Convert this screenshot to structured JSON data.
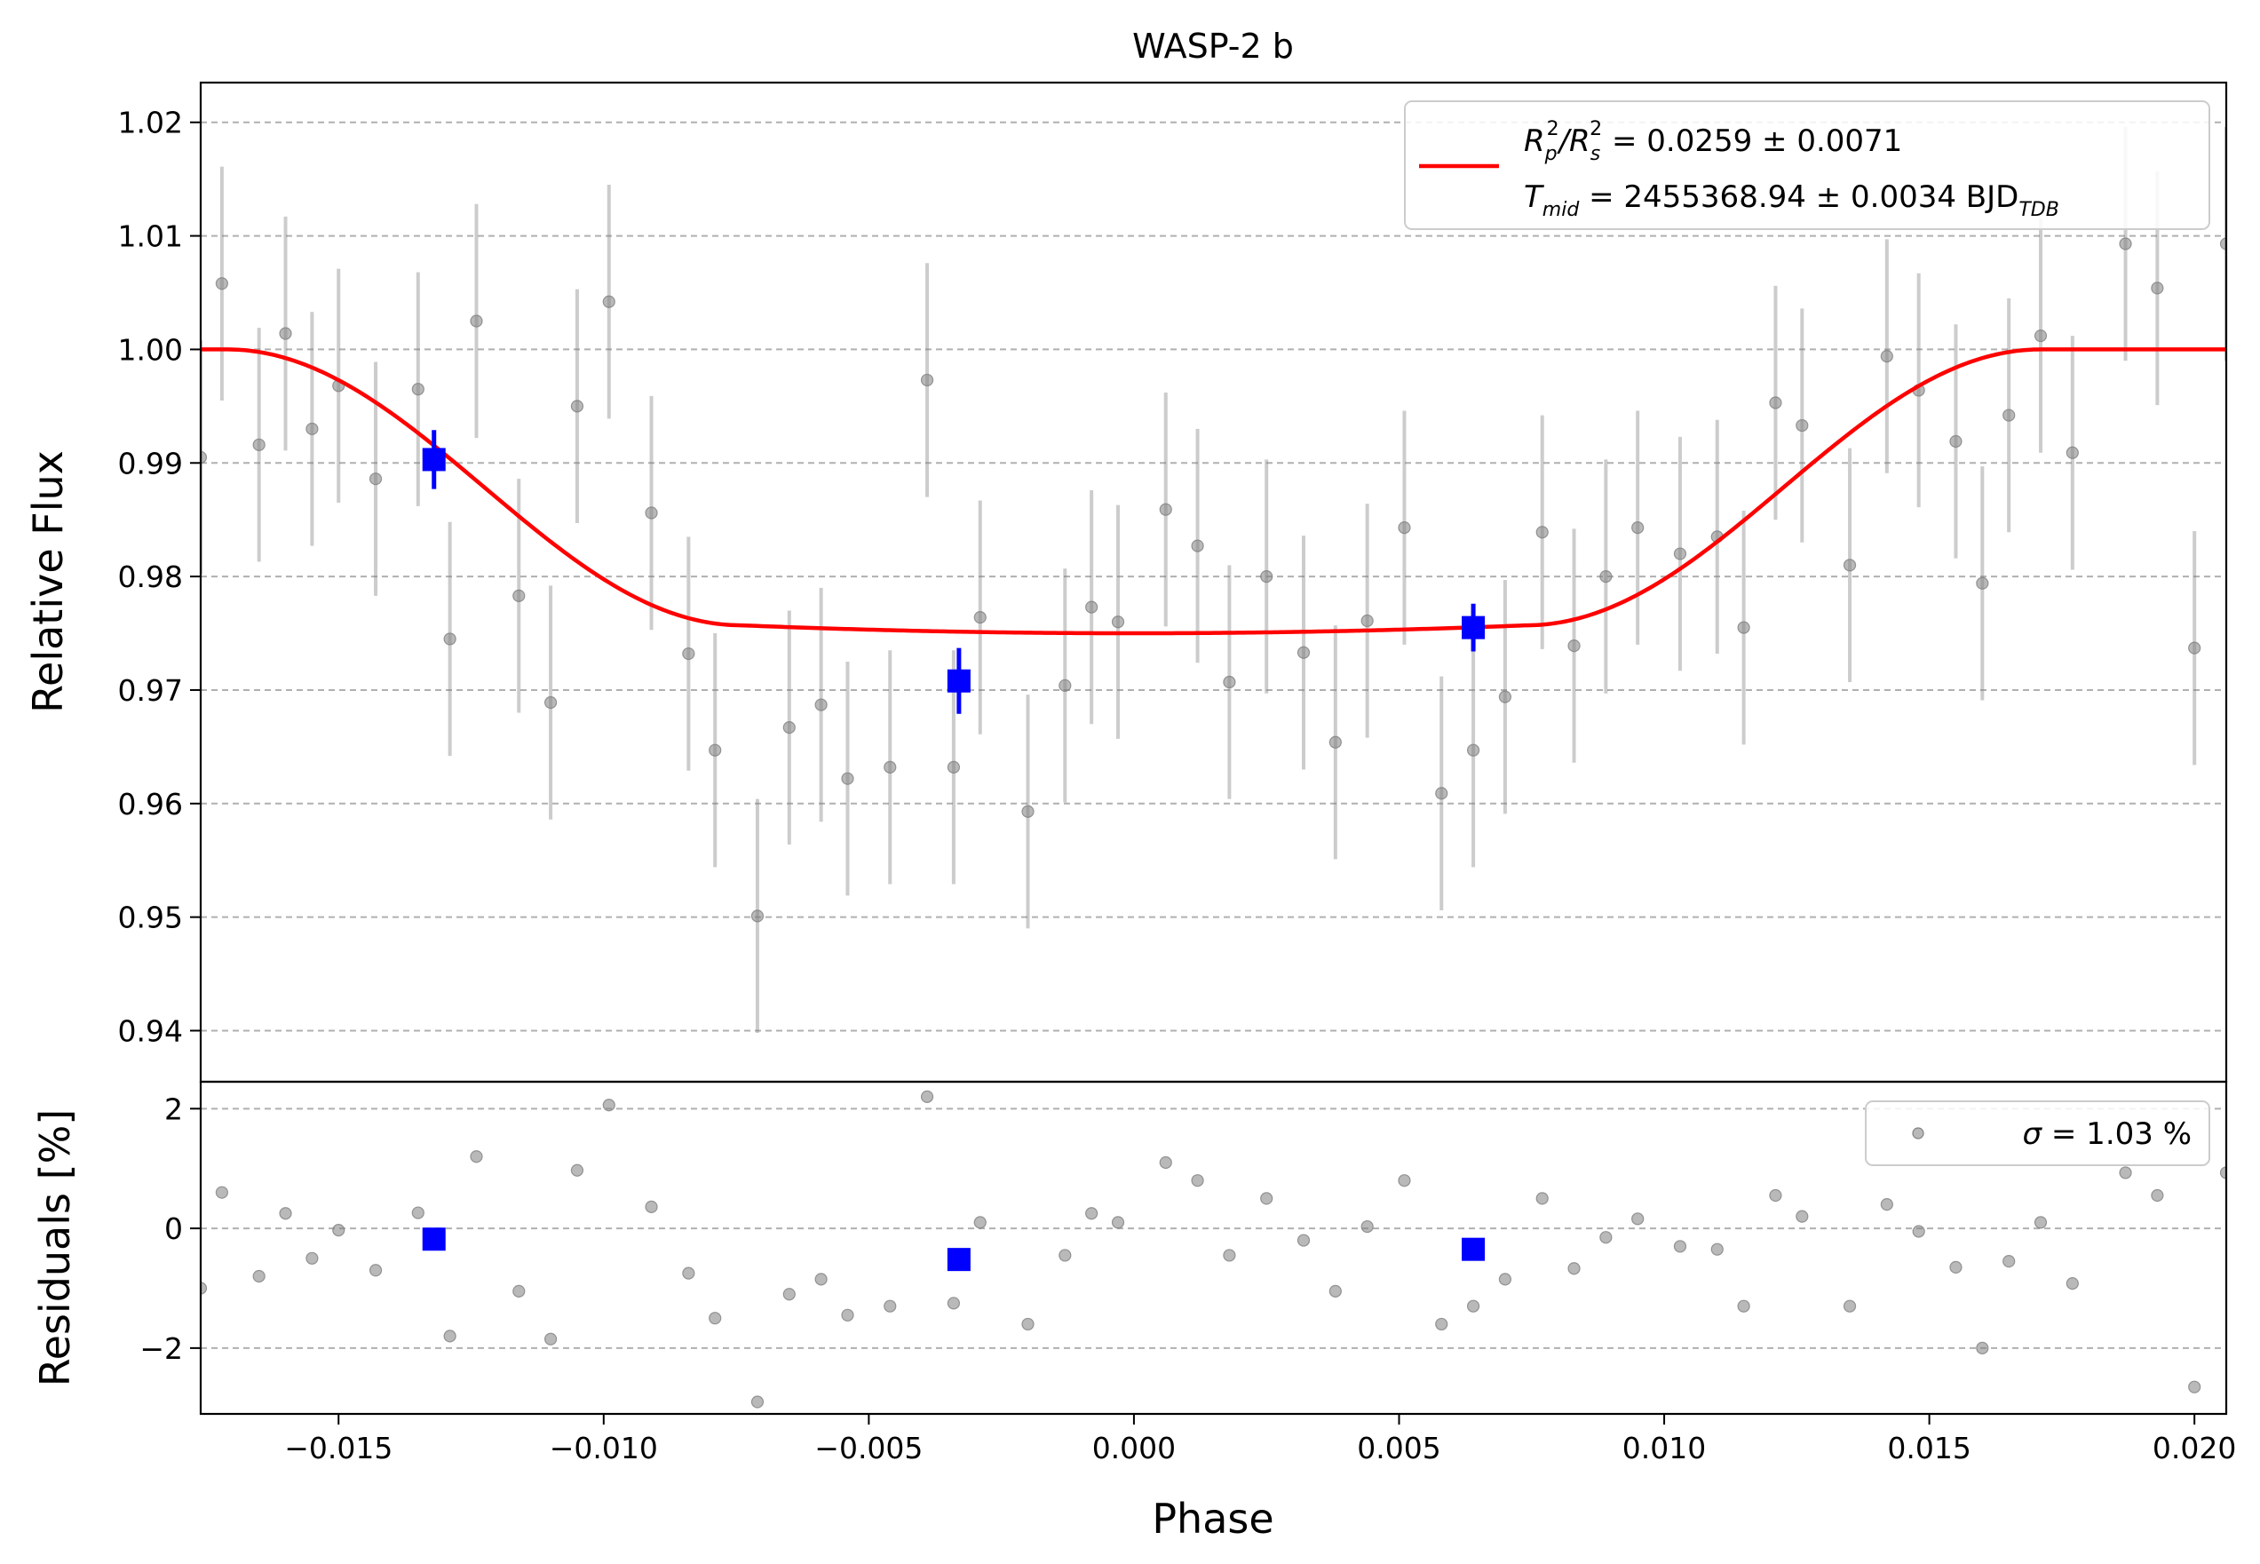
{
  "chart_data": {
    "type": "scatter",
    "title": "WASP-2 b",
    "xlabel": "Phase",
    "xlim": [
      -0.0176,
      0.0206
    ],
    "xticks": [
      -0.015,
      -0.01,
      -0.005,
      0.0,
      0.005,
      0.01,
      0.015,
      0.02
    ],
    "xtick_labels": [
      "−0.015",
      "−0.010",
      "−0.005",
      "0.000",
      "0.005",
      "0.010",
      "0.015",
      "0.020"
    ],
    "grid": true,
    "top_panel": {
      "ylabel": "Relative Flux",
      "ylim": [
        0.9355,
        1.0235
      ],
      "yticks": [
        0.94,
        0.95,
        0.96,
        0.97,
        0.98,
        0.99,
        1.0,
        1.01,
        1.02
      ],
      "ytick_labels": [
        "0.94",
        "0.95",
        "0.96",
        "0.97",
        "0.98",
        "0.99",
        "1.00",
        "1.01",
        "1.02"
      ],
      "legend_position": "top-right",
      "legend": {
        "line1": {
          "lhs": "R",
          "sub1": "p",
          "sup1": "2",
          "slash": "/R",
          "sub2": "s",
          "sup2": "2",
          "rhs": " = 0.0259 ± 0.0071"
        },
        "line2": {
          "lhs": "T",
          "sub1": "mid",
          "rhs": " = 2455368.94 ± 0.0034 BJD",
          "sub2": "TDB"
        }
      },
      "model": {
        "color": "#ff0000",
        "depth": 0.025,
        "t_total": 0.0342,
        "t_flat": 0.0148,
        "x": [
          -0.0176,
          -0.0171,
          -0.016,
          -0.015,
          -0.014,
          -0.013,
          -0.012,
          -0.011,
          -0.01,
          -0.009,
          -0.008,
          -0.0074,
          -0.006,
          -0.004,
          -0.002,
          0.0,
          0.002,
          0.004,
          0.006,
          0.0074,
          0.008,
          0.009,
          0.01,
          0.011,
          0.012,
          0.013,
          0.014,
          0.015,
          0.016,
          0.0171,
          0.0206
        ],
        "y": [
          1.0,
          1.0,
          0.9992,
          0.9976,
          0.9955,
          0.9929,
          0.9898,
          0.9865,
          0.9832,
          0.98,
          0.977,
          0.9765,
          0.9758,
          0.9753,
          0.975,
          0.975,
          0.975,
          0.9753,
          0.9758,
          0.9765,
          0.977,
          0.98,
          0.9832,
          0.9865,
          0.9898,
          0.9929,
          0.9955,
          0.9976,
          0.9992,
          1.0,
          1.0
        ]
      },
      "data": {
        "color": "#808080",
        "x": [
          -0.0176,
          -0.0172,
          -0.0165,
          -0.016,
          -0.0155,
          -0.015,
          -0.0143,
          -0.0135,
          -0.0129,
          -0.0124,
          -0.0116,
          -0.011,
          -0.0105,
          -0.0099,
          -0.0091,
          -0.0084,
          -0.0079,
          -0.0071,
          -0.0065,
          -0.0059,
          -0.0054,
          -0.0046,
          -0.0039,
          -0.0034,
          -0.0029,
          -0.002,
          -0.0013,
          -0.0008,
          -0.0003,
          0.0006,
          0.0012,
          0.0018,
          0.0025,
          0.0032,
          0.0038,
          0.0044,
          0.0051,
          0.0058,
          0.0064,
          0.007,
          0.0077,
          0.0083,
          0.0089,
          0.0095,
          0.0103,
          0.011,
          0.0115,
          0.0121,
          0.0126,
          0.0135,
          0.0142,
          0.0148,
          0.0155,
          0.016,
          0.0165,
          0.0171,
          0.0177,
          0.0187,
          0.0193,
          0.02,
          0.0206
        ],
        "y": [
          0.9905,
          1.0058,
          0.9916,
          1.0014,
          0.993,
          0.9968,
          0.9886,
          0.9965,
          0.9745,
          1.0025,
          0.9783,
          0.9689,
          0.995,
          1.0042,
          0.9856,
          0.9732,
          0.9647,
          0.9501,
          0.9667,
          0.9687,
          0.9622,
          0.9632,
          0.9973,
          0.9632,
          0.9764,
          0.9593,
          0.9704,
          0.9773,
          0.976,
          0.9859,
          0.9827,
          0.9707,
          0.98,
          0.9733,
          0.9654,
          0.9761,
          0.9843,
          0.9609,
          0.9647,
          0.9694,
          0.9839,
          0.9739,
          0.98,
          0.9843,
          0.982,
          0.9835,
          0.9755,
          0.9953,
          0.9933,
          0.981,
          0.9994,
          0.9964,
          0.9919,
          0.9794,
          0.9942,
          1.0012,
          0.9909,
          1.0093,
          1.0054,
          0.9737,
          1.0093
        ],
        "yerr": 0.0103
      },
      "binned": {
        "color": "#0000ff",
        "x": [
          -0.0132,
          -0.0033,
          0.0064
        ],
        "y": [
          0.9903,
          0.9708,
          0.9755
        ],
        "yerr": [
          0.0026,
          0.0029,
          0.0021
        ]
      }
    },
    "bottom_panel": {
      "ylabel": "Residuals [%]",
      "ylim": [
        -3.1,
        2.45
      ],
      "yticks": [
        -2,
        0,
        2
      ],
      "ytick_labels": [
        "−2",
        "0",
        "2"
      ],
      "legend_position": "top-right",
      "legend": {
        "sym": "σ",
        "rhs": " = 1.03 %"
      },
      "residuals": [
        -1.0,
        0.6,
        -0.8,
        0.25,
        -0.5,
        -0.03,
        -0.7,
        0.26,
        -1.8,
        1.2,
        -1.05,
        -1.85,
        0.97,
        2.06,
        0.36,
        -0.75,
        -1.5,
        -2.9,
        -1.1,
        -0.85,
        -1.45,
        -1.3,
        2.2,
        -1.25,
        0.1,
        -1.6,
        -0.45,
        0.25,
        0.1,
        1.1,
        0.8,
        -0.45,
        0.5,
        -0.2,
        -1.05,
        0.03,
        0.8,
        -1.6,
        -1.3,
        -0.85,
        0.5,
        -0.67,
        -0.15,
        0.16,
        -0.3,
        -0.35,
        -1.3,
        0.55,
        0.2,
        -1.3,
        0.4,
        -0.05,
        -0.65,
        -2.0,
        -0.55,
        0.1,
        -0.92,
        0.93,
        0.55,
        -2.65,
        0.93
      ],
      "binned_residuals": [
        -0.18,
        -0.52,
        -0.35
      ]
    }
  }
}
